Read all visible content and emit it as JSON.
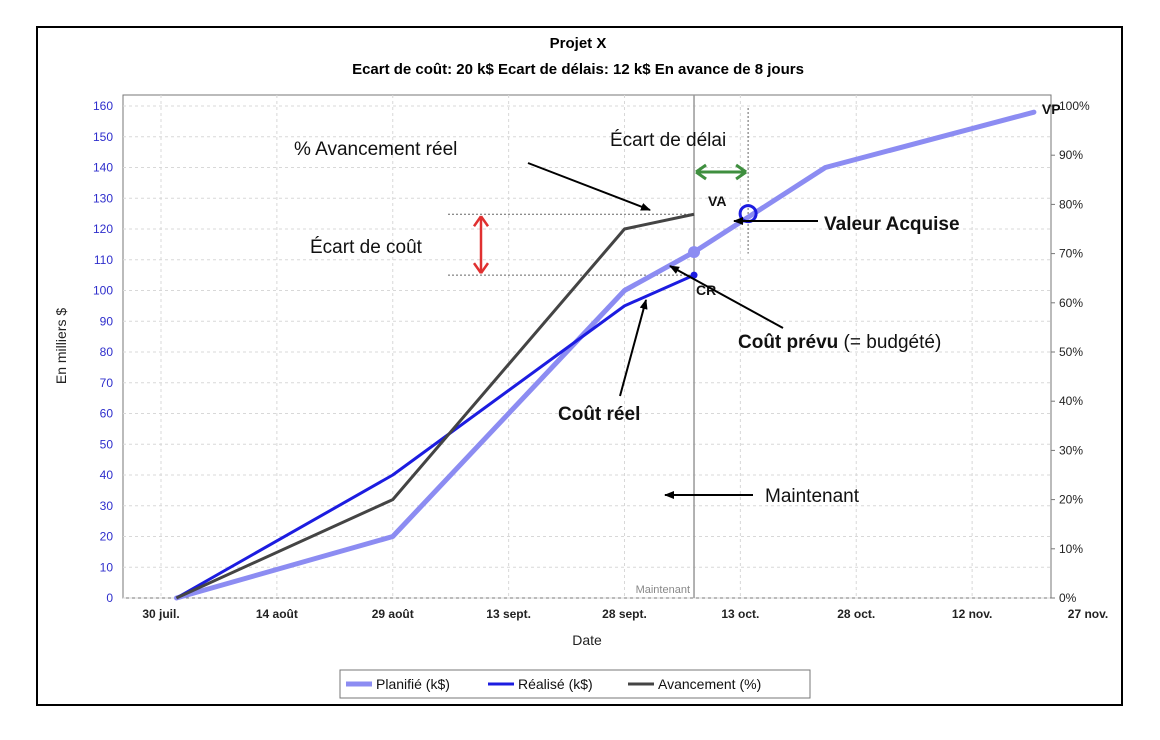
{
  "chart_data": {
    "type": "line",
    "title": "Projet X",
    "subtitle": "Ecart de coût: 20 k$  Ecart de délais: 12 k$  En avance de 8 jours",
    "xlabel": "Date",
    "ylabel": "En milliers $",
    "x_ticks": [
      "30 juil.",
      "14 août",
      "29 août",
      "13 sept.",
      "28 sept.",
      "13 oct.",
      "28 oct.",
      "12 nov.",
      "27 nov."
    ],
    "ylim": [
      0,
      160
    ],
    "y_ticks": [
      "0",
      "10",
      "20",
      "30",
      "40",
      "50",
      "60",
      "70",
      "80",
      "90",
      "100",
      "110",
      "120",
      "130",
      "140",
      "150",
      "160"
    ],
    "y2lim": [
      0,
      100
    ],
    "y2_ticks": [
      "0%",
      "10%",
      "20%",
      "30%",
      "40%",
      "50%",
      "60%",
      "70%",
      "80%",
      "90%",
      "100%"
    ],
    "grid": true,
    "legend_position": "bottom",
    "series": [
      {
        "name": "Planifié (k$)",
        "color": "#8c8cf2",
        "points": [
          [
            "2013-08-01",
            0
          ],
          [
            "2013-08-29",
            20
          ],
          [
            "2013-09-28",
            100
          ],
          [
            "2013-10-07",
            112.5
          ],
          [
            "2013-10-24",
            140
          ],
          [
            "2013-11-20",
            158
          ]
        ]
      },
      {
        "name": "Réalisé (k$)",
        "color": "#1c1ce0",
        "points": [
          [
            "2013-08-01",
            0
          ],
          [
            "2013-08-29",
            40
          ],
          [
            "2013-09-28",
            95
          ],
          [
            "2013-10-07",
            105
          ]
        ]
      },
      {
        "name": "Avancement (%)",
        "color": "#444444",
        "axis": "right",
        "points": [
          [
            "2013-08-01",
            0
          ],
          [
            "2013-08-29",
            20
          ],
          [
            "2013-09-28",
            75
          ],
          [
            "2013-10-07",
            78
          ]
        ]
      }
    ],
    "now_date": "2013-10-07",
    "now_label": "Maintenant",
    "point_labels": {
      "vp": "VP",
      "va": "VA",
      "cr": "CR"
    },
    "earned_value_date": "2013-10-14",
    "earned_value": 125,
    "annotations": {
      "avancement_reel": "% Avancement réel",
      "ecart_delai": "Écart de délai",
      "ecart_cout": "Écart de coût",
      "valeur_acquise": "Valeur Acquise",
      "cout_prevu_bold": "Coût prévu",
      "cout_prevu_rest": " (= budgété)",
      "cout_reel": "Coût réel",
      "maintenant": "Maintenant"
    },
    "colors": {
      "ecart_delai": "#3f8f3f",
      "ecart_cout": "#e03030"
    }
  }
}
